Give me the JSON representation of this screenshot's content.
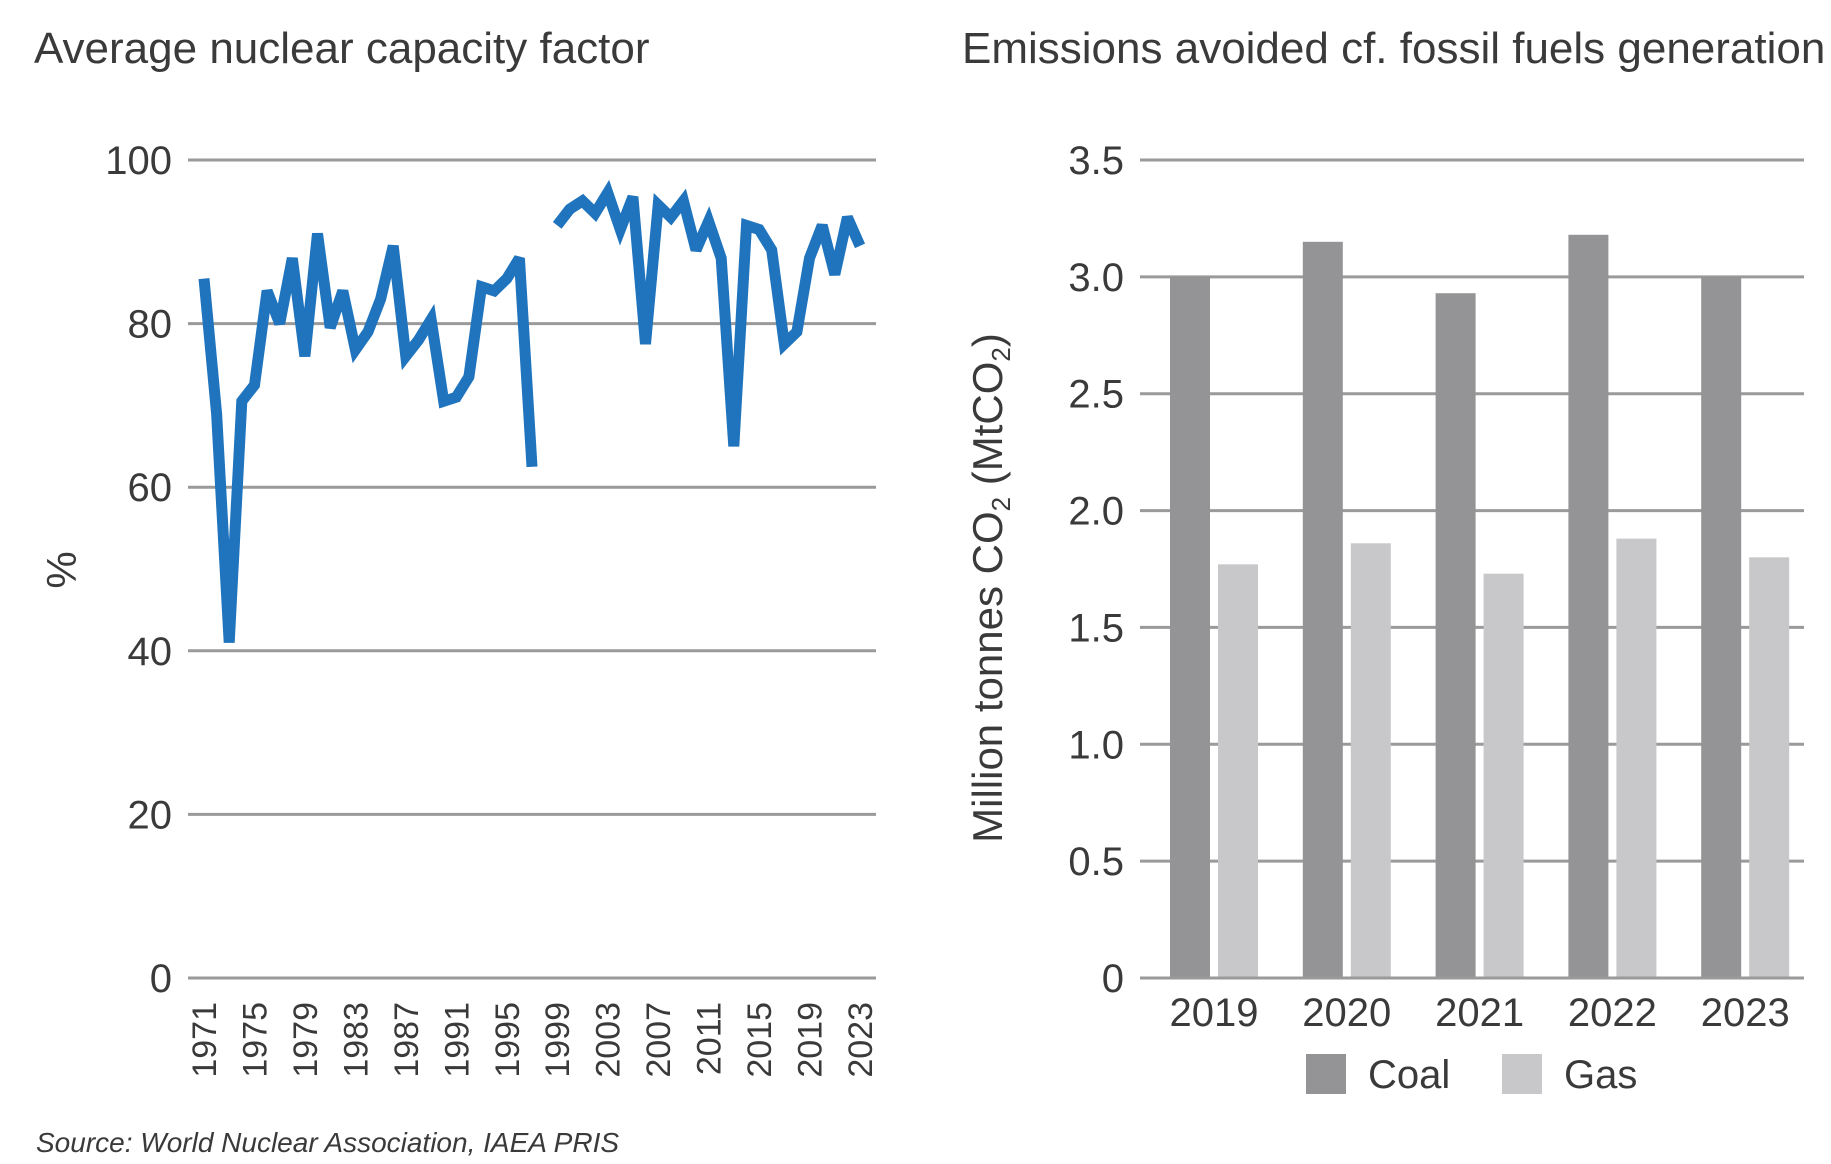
{
  "source": "Source: World Nuclear Association, IAEA PRIS",
  "chart_data": [
    {
      "type": "line",
      "title": "Average nuclear capacity factor",
      "xlabel": "",
      "ylabel": "%",
      "ylim": [
        0,
        100
      ],
      "yticks": [
        "0",
        "20",
        "40",
        "60",
        "80",
        "100"
      ],
      "xticks": [
        "1971",
        "1975",
        "1979",
        "1983",
        "1987",
        "1991",
        "1995",
        "1999",
        "2003",
        "2007",
        "2011",
        "2015",
        "2019",
        "2023"
      ],
      "grid": true,
      "color": "#1f74bd",
      "x": [
        1971,
        1972,
        1973,
        1974,
        1975,
        1976,
        1977,
        1978,
        1979,
        1980,
        1981,
        1982,
        1983,
        1984,
        1985,
        1986,
        1987,
        1988,
        1989,
        1990,
        1991,
        1992,
        1993,
        1994,
        1995,
        1996,
        1997,
        1998,
        1999,
        2000,
        2001,
        2002,
        2003,
        2004,
        2005,
        2006,
        2007,
        2008,
        2009,
        2010,
        2011,
        2012,
        2013,
        2014,
        2015,
        2016,
        2017,
        2018,
        2019,
        2020,
        2021,
        2022,
        2023
      ],
      "values": [
        85.5,
        69,
        41,
        70.5,
        72.5,
        84,
        80,
        88,
        76,
        91,
        79.5,
        84,
        76.8,
        79,
        83,
        89.5,
        76,
        78,
        80.5,
        70.5,
        71,
        73.5,
        84.5,
        84,
        85.5,
        88,
        62.5,
        null,
        92,
        94,
        95,
        93.5,
        96,
        91.5,
        95.5,
        77.5,
        94.5,
        93,
        95,
        89,
        92.5,
        88,
        65,
        92,
        91.5,
        89,
        77.5,
        79,
        88,
        92,
        86,
        93,
        89.5
      ]
    },
    {
      "type": "bar",
      "title": "Emissions avoided cf. fossil fuels generation",
      "xlabel": "",
      "ylabel": "Million tonnes CO2 (MtCO2)",
      "ylabel_parts": {
        "main": "Million tonnes CO",
        "sub1": "2",
        "paren_open": " (MtCO",
        "sub2": "2",
        "paren_close": ")"
      },
      "ylim": [
        0,
        3.5
      ],
      "yticks": [
        "0",
        "0.5",
        "1.0",
        "1.5",
        "2.0",
        "2.5",
        "3.0",
        "3.5"
      ],
      "categories": [
        "2019",
        "2020",
        "2021",
        "2022",
        "2023"
      ],
      "grid": true,
      "legend_position": "bottom",
      "series": [
        {
          "name": "Coal",
          "color": "#949497",
          "values": [
            3.0,
            3.15,
            2.93,
            3.18,
            3.0
          ]
        },
        {
          "name": "Gas",
          "color": "#c8c8ca",
          "values": [
            1.77,
            1.86,
            1.73,
            1.88,
            1.8
          ]
        }
      ]
    }
  ]
}
